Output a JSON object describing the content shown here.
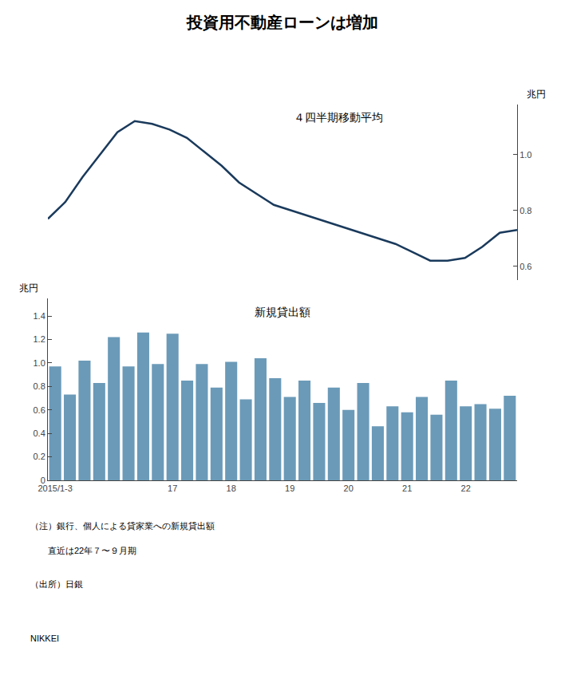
{
  "chart_data": [
    {
      "type": "line",
      "title": "投資用不動産ローンは増加",
      "ylabel": "兆円",
      "annotations": [
        "４四半期移動平均"
      ],
      "categories": [
        null,
        null,
        null,
        null,
        null,
        null,
        null,
        null,
        null,
        null,
        null,
        null,
        null,
        null,
        null,
        null,
        null,
        null,
        null,
        null,
        null,
        null,
        null,
        null,
        null,
        null,
        null,
        null
      ],
      "values": [
        0.77,
        0.83,
        0.92,
        1.0,
        1.08,
        1.12,
        1.11,
        1.09,
        1.06,
        1.01,
        0.96,
        0.9,
        0.86,
        0.82,
        0.8,
        0.78,
        0.76,
        0.74,
        0.72,
        0.7,
        0.68,
        0.65,
        0.62,
        0.62,
        0.63,
        0.67,
        0.72,
        0.73
      ],
      "color": "#1a3a5c",
      "ylim": [
        0.55,
        1.18
      ],
      "yticks": [
        0.6,
        0.8,
        {
          "value": 1.0,
          "label": "1.0"
        }
      ],
      "grid": false,
      "tick_labels": "y"
    },
    {
      "type": "bar",
      "ylabel": "兆円",
      "annotations": [
        "新規貸出額",
        "（注）銀行、個人による貸家業への新規貸出額",
        "　　直近は22年７〜９月期",
        "（出所）日銀",
        "NIKKEI"
      ],
      "categories": [
        "2015/1-3",
        null,
        null,
        null,
        null,
        null,
        null,
        null,
        "17",
        null,
        null,
        null,
        "18",
        null,
        null,
        null,
        "19",
        null,
        null,
        null,
        "20",
        null,
        null,
        null,
        "21",
        null,
        null,
        null,
        "22",
        null,
        null,
        null
      ],
      "values": [
        0.97,
        0.73,
        1.02,
        0.83,
        1.22,
        0.97,
        1.26,
        0.99,
        1.25,
        0.85,
        0.99,
        0.79,
        1.01,
        0.69,
        1.04,
        0.87,
        0.71,
        0.85,
        0.66,
        0.79,
        0.6,
        0.83,
        0.46,
        0.63,
        0.58,
        0.71,
        0.56,
        0.85,
        0.63,
        0.65,
        0.61,
        0.72
      ],
      "color": "#6b9ab8",
      "ylim": [
        0,
        1.55
      ],
      "yticks": [
        0,
        0.2,
        0.4,
        0.6,
        0.8,
        {
          "value": 1.0,
          "label": "1.0"
        },
        1.2,
        1.4
      ],
      "grid": false
    }
  ]
}
